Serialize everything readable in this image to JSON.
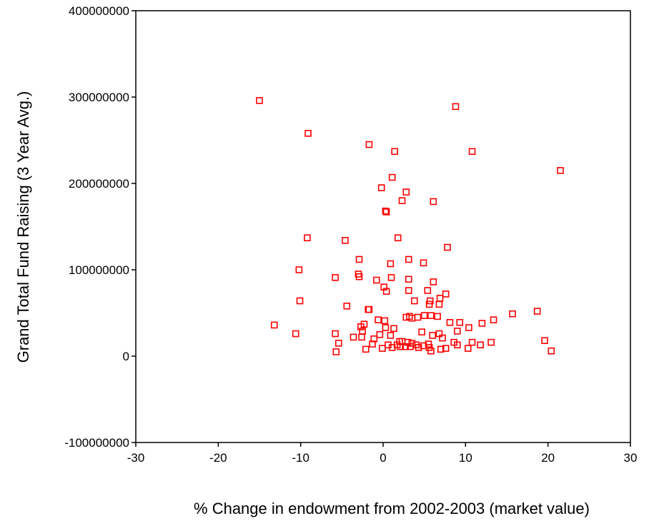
{
  "chart_data": {
    "type": "scatter",
    "title": "",
    "xlabel": "% Change in endowment from 2002-2003 (market value)",
    "ylabel": "Grand Total Fund Raising (3 Year Avg.)",
    "xlim": [
      -30,
      30
    ],
    "ylim": [
      -100000000,
      400000000
    ],
    "x_ticks": [
      -30,
      -20,
      -10,
      0,
      10,
      20,
      30
    ],
    "x_tick_labels": [
      "-30",
      "-20",
      "-10",
      "0",
      "10",
      "20",
      "30"
    ],
    "y_ticks": [
      -100000000,
      0,
      100000000,
      200000000,
      300000000,
      400000000
    ],
    "y_tick_labels": [
      "-100000000",
      "0",
      "100000000",
      "200000000",
      "300000000",
      "400000000"
    ],
    "grid": false,
    "legend": "none",
    "marker": "hollow-square",
    "marker_color": "#ff0000",
    "points": [
      [
        -15.0,
        296000000
      ],
      [
        -9.1,
        258000000
      ],
      [
        -1.7,
        245000000
      ],
      [
        1.4,
        237000000
      ],
      [
        8.8,
        289000000
      ],
      [
        10.8,
        237000000
      ],
      [
        21.5,
        215000000
      ],
      [
        1.1,
        207000000
      ],
      [
        -0.2,
        195000000
      ],
      [
        2.8,
        190000000
      ],
      [
        2.3,
        180000000
      ],
      [
        6.1,
        179000000
      ],
      [
        0.3,
        168000000
      ],
      [
        0.4,
        167000000
      ],
      [
        -9.2,
        137000000
      ],
      [
        -4.6,
        134000000
      ],
      [
        1.8,
        137000000
      ],
      [
        7.8,
        126000000
      ],
      [
        -2.9,
        112000000
      ],
      [
        3.1,
        112000000
      ],
      [
        4.9,
        108000000
      ],
      [
        0.9,
        107000000
      ],
      [
        -10.2,
        100000000
      ],
      [
        -5.8,
        91000000
      ],
      [
        -3.0,
        95000000
      ],
      [
        -2.9,
        92000000
      ],
      [
        1.0,
        91000000
      ],
      [
        3.1,
        89000000
      ],
      [
        -0.8,
        88000000
      ],
      [
        6.1,
        86000000
      ],
      [
        0.1,
        80000000
      ],
      [
        0.4,
        75000000
      ],
      [
        3.1,
        76000000
      ],
      [
        5.4,
        76000000
      ],
      [
        7.6,
        72000000
      ],
      [
        -10.1,
        64000000
      ],
      [
        3.8,
        64000000
      ],
      [
        5.7,
        64000000
      ],
      [
        5.6,
        60000000
      ],
      [
        6.9,
        67000000
      ],
      [
        6.8,
        60000000
      ],
      [
        -4.4,
        58000000
      ],
      [
        -1.8,
        54000000
      ],
      [
        -1.7,
        54000000
      ],
      [
        3.2,
        46000000
      ],
      [
        3.5,
        44000000
      ],
      [
        4.2,
        45000000
      ],
      [
        5.0,
        47000000
      ],
      [
        5.8,
        47000000
      ],
      [
        6.6,
        46000000
      ],
      [
        2.8,
        45000000
      ],
      [
        -0.6,
        42000000
      ],
      [
        0.2,
        41000000
      ],
      [
        8.1,
        39000000
      ],
      [
        9.3,
        39000000
      ],
      [
        12.0,
        38000000
      ],
      [
        13.4,
        42000000
      ],
      [
        15.7,
        49000000
      ],
      [
        18.7,
        52000000
      ],
      [
        -13.2,
        36000000
      ],
      [
        -10.6,
        26000000
      ],
      [
        -5.8,
        26000000
      ],
      [
        -3.6,
        22000000
      ],
      [
        -2.6,
        22000000
      ],
      [
        -2.5,
        29000000
      ],
      [
        -2.3,
        37000000
      ],
      [
        -2.7,
        34000000
      ],
      [
        -1.1,
        20000000
      ],
      [
        -0.4,
        25000000
      ],
      [
        0.9,
        24000000
      ],
      [
        1.3,
        32000000
      ],
      [
        0.3,
        33000000
      ],
      [
        2.0,
        17000000
      ],
      [
        2.3,
        17000000
      ],
      [
        3.0,
        16000000
      ],
      [
        3.5,
        15000000
      ],
      [
        4.0,
        13000000
      ],
      [
        4.7,
        28000000
      ],
      [
        5.5,
        14000000
      ],
      [
        6.0,
        24000000
      ],
      [
        6.8,
        26000000
      ],
      [
        7.2,
        21000000
      ],
      [
        8.6,
        16000000
      ],
      [
        9.0,
        29000000
      ],
      [
        10.4,
        33000000
      ],
      [
        10.8,
        16000000
      ],
      [
        11.8,
        13000000
      ],
      [
        13.1,
        16000000
      ],
      [
        -5.4,
        15000000
      ],
      [
        -5.7,
        5000000
      ],
      [
        -2.1,
        8000000
      ],
      [
        -1.3,
        14000000
      ],
      [
        -0.1,
        9000000
      ],
      [
        0.6,
        13000000
      ],
      [
        1.1,
        10000000
      ],
      [
        1.7,
        13000000
      ],
      [
        2.1,
        11000000
      ],
      [
        2.7,
        11000000
      ],
      [
        3.3,
        11000000
      ],
      [
        4.3,
        10000000
      ],
      [
        4.9,
        12000000
      ],
      [
        5.6,
        10000000
      ],
      [
        5.8,
        6000000
      ],
      [
        7.0,
        8000000
      ],
      [
        7.6,
        9000000
      ],
      [
        9.0,
        13000000
      ],
      [
        10.3,
        9000000
      ],
      [
        19.6,
        18000000
      ],
      [
        20.4,
        6000000
      ]
    ]
  }
}
